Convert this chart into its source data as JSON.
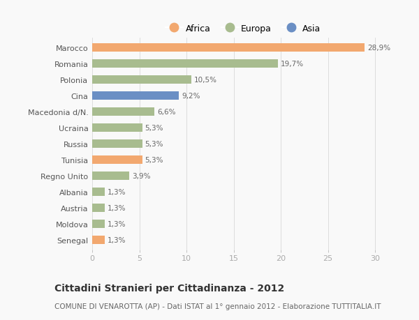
{
  "categories": [
    "Marocco",
    "Romania",
    "Polonia",
    "Cina",
    "Macedonia d/N.",
    "Ucraina",
    "Russia",
    "Tunisia",
    "Regno Unito",
    "Albania",
    "Austria",
    "Moldova",
    "Senegal"
  ],
  "values": [
    28.9,
    19.7,
    10.5,
    9.2,
    6.6,
    5.3,
    5.3,
    5.3,
    3.9,
    1.3,
    1.3,
    1.3,
    1.3
  ],
  "labels": [
    "28,9%",
    "19,7%",
    "10,5%",
    "9,2%",
    "6,6%",
    "5,3%",
    "5,3%",
    "5,3%",
    "3,9%",
    "1,3%",
    "1,3%",
    "1,3%",
    "1,3%"
  ],
  "continents": [
    "Africa",
    "Europa",
    "Europa",
    "Asia",
    "Europa",
    "Europa",
    "Europa",
    "Africa",
    "Europa",
    "Europa",
    "Europa",
    "Europa",
    "Africa"
  ],
  "colors": {
    "Africa": "#F2A86F",
    "Europa": "#A8BC8F",
    "Asia": "#6B8FC4"
  },
  "xlim": [
    0,
    32
  ],
  "xticks": [
    0,
    5,
    10,
    15,
    20,
    25,
    30
  ],
  "title": "Cittadini Stranieri per Cittadinanza - 2012",
  "subtitle": "COMUNE DI VENAROTTA (AP) - Dati ISTAT al 1° gennaio 2012 - Elaborazione TUTTITALIA.IT",
  "background_color": "#f9f9f9",
  "bar_height": 0.55,
  "label_fontsize": 7.5,
  "ytick_fontsize": 8,
  "xtick_fontsize": 8,
  "title_fontsize": 10,
  "subtitle_fontsize": 7.5
}
